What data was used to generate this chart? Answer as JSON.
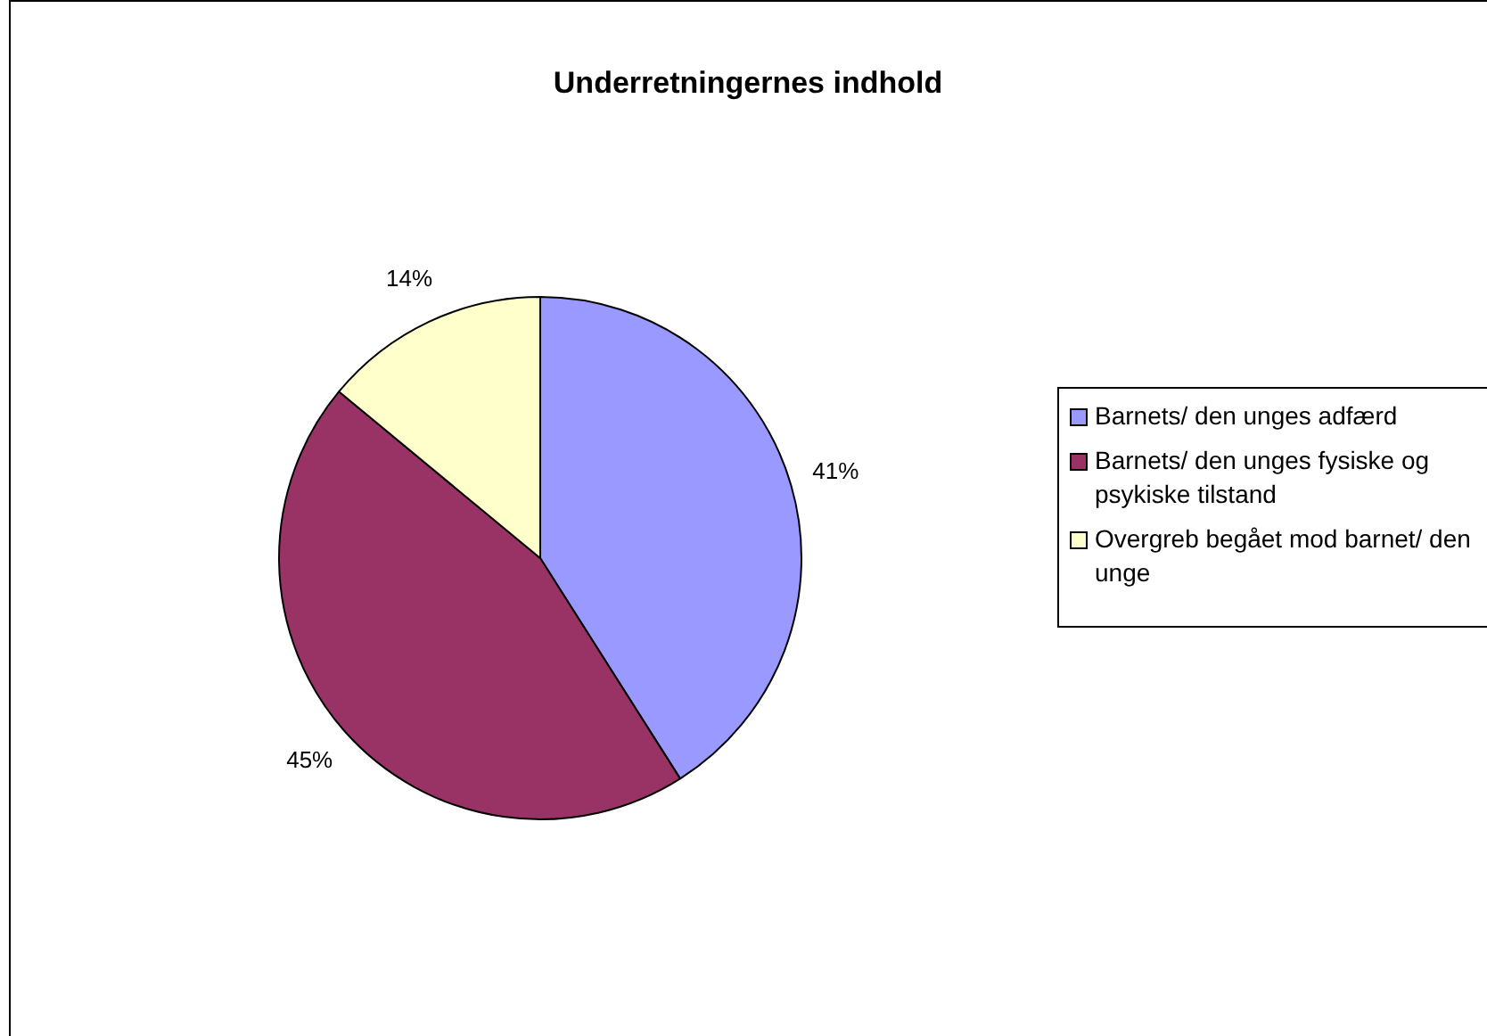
{
  "chart_data": {
    "type": "pie",
    "title": "Underretningernes indhold",
    "categories": [
      "Barnets/ den unges adfærd",
      "Barnets/ den unges fysiske og psykiske tilstand",
      "Overgreb begået mod barnet/ den unge"
    ],
    "values": [
      41,
      45,
      14
    ],
    "colors": [
      "#9999ff",
      "#993366",
      "#ffffcc"
    ],
    "value_labels": [
      "41%",
      "45%",
      "14%"
    ],
    "legend": "right"
  }
}
